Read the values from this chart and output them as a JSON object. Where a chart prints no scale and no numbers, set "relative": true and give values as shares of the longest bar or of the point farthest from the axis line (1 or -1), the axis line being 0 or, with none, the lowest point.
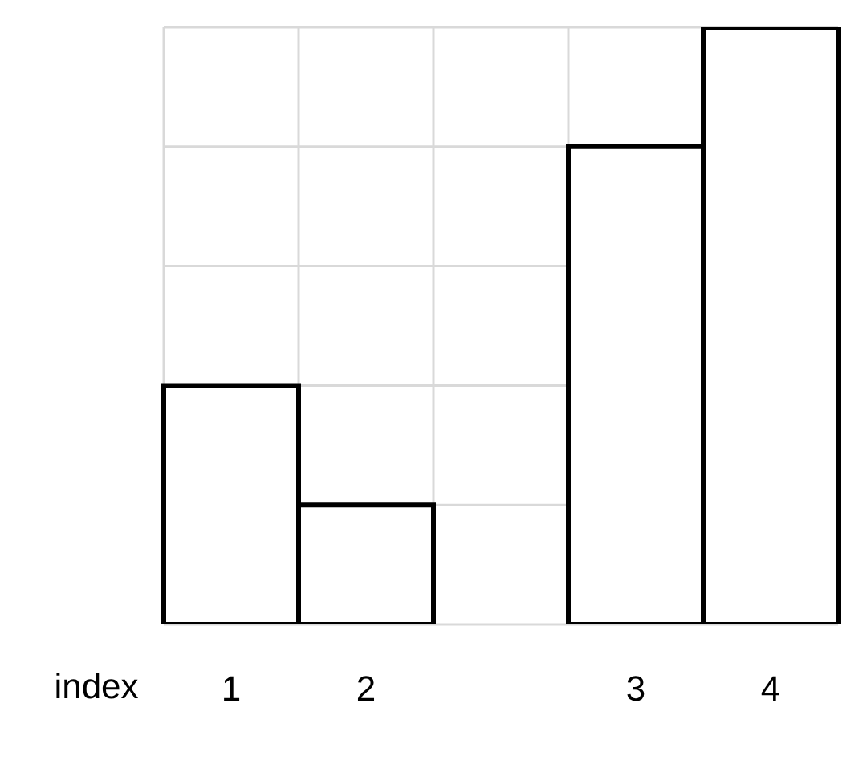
{
  "chart_data": {
    "type": "bar",
    "relative": true,
    "xlabel": "index",
    "categories": [
      "1",
      "2",
      null,
      "3",
      "4"
    ],
    "values": [
      0.4,
      0.2,
      null,
      0.8,
      1
    ],
    "color": "#000000",
    "grid": true
  }
}
